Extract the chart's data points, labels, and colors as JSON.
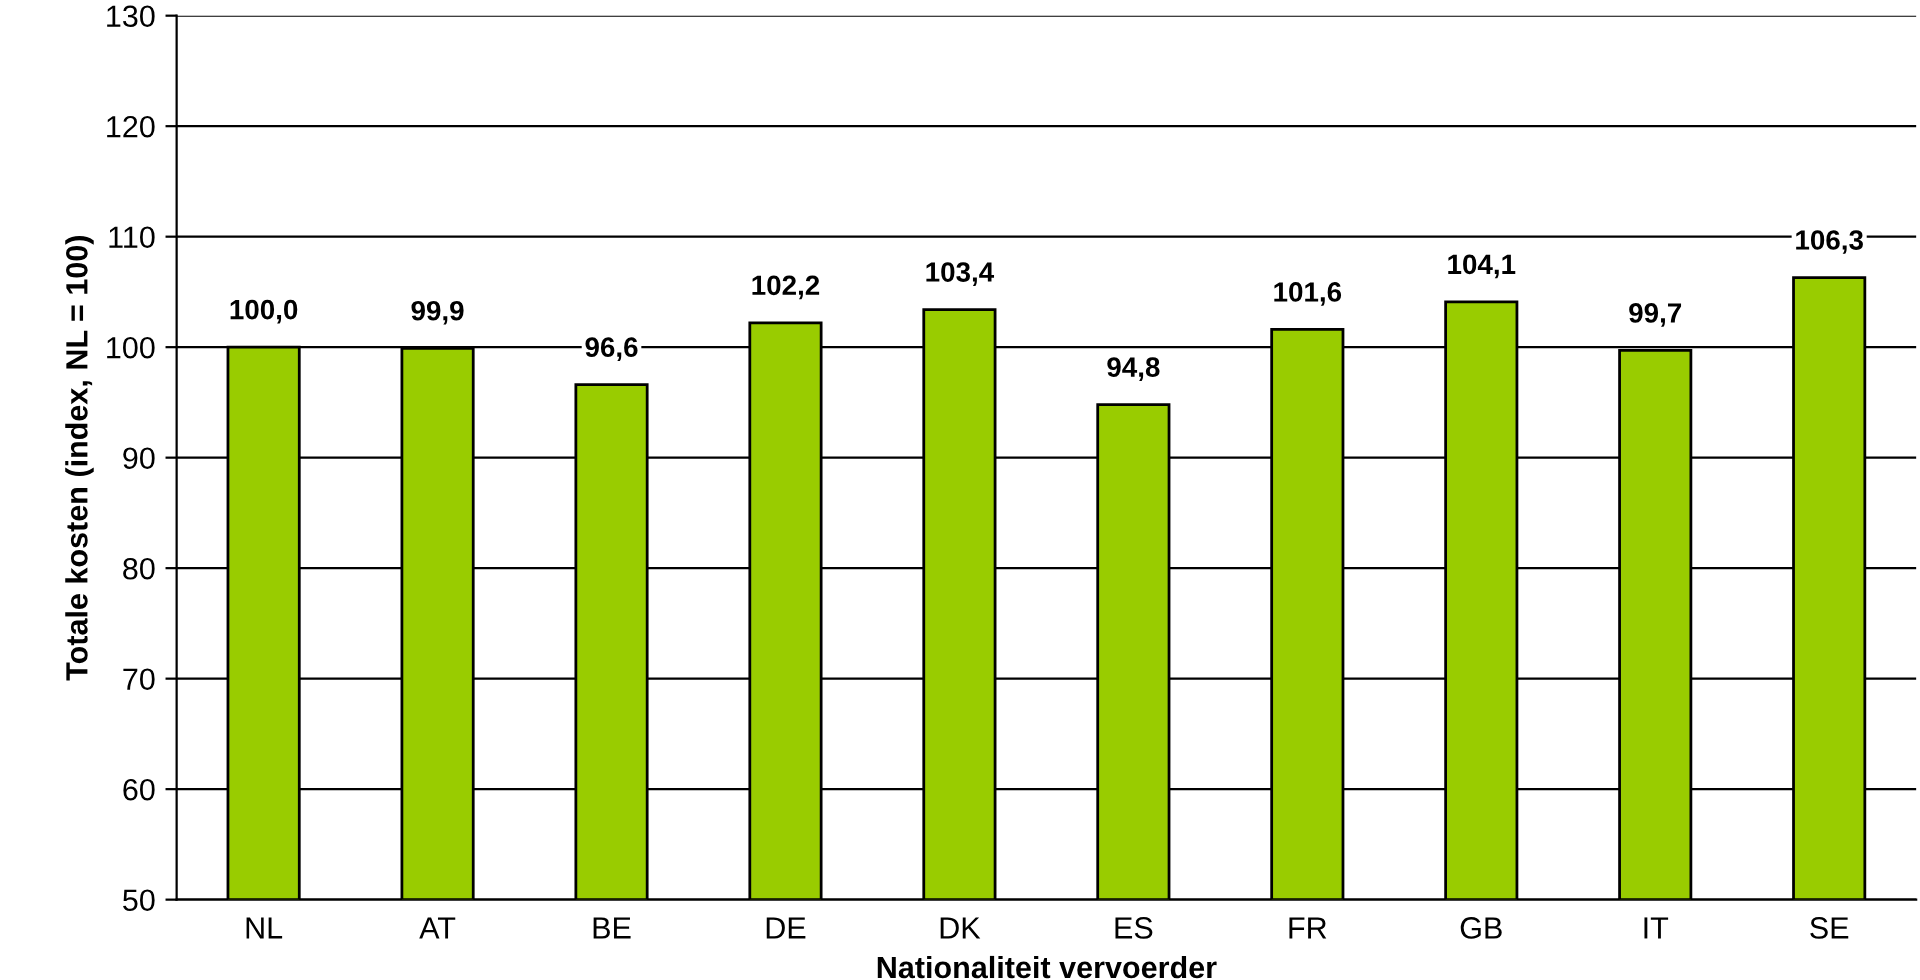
{
  "chart_data": {
    "type": "bar",
    "xlabel": "Nationaliteit vervoerder",
    "ylabel": "Totale kosten (index, NL = 100)",
    "categories": [
      "NL",
      "AT",
      "BE",
      "DE",
      "DK",
      "ES",
      "FR",
      "GB",
      "IT",
      "SE"
    ],
    "values": [
      100.0,
      99.9,
      96.6,
      102.2,
      103.4,
      94.8,
      101.6,
      104.1,
      99.7,
      106.3
    ],
    "value_labels": [
      "100,0",
      "99,9",
      "96,6",
      "102,2",
      "103,4",
      "94,8",
      "101,6",
      "104,1",
      "99,7",
      "106,3"
    ],
    "color": "#99cc00",
    "ylim": [
      50,
      130
    ],
    "yticks": [
      50,
      60,
      70,
      80,
      90,
      100,
      110,
      120,
      130
    ],
    "grid": "y",
    "legend": false
  }
}
